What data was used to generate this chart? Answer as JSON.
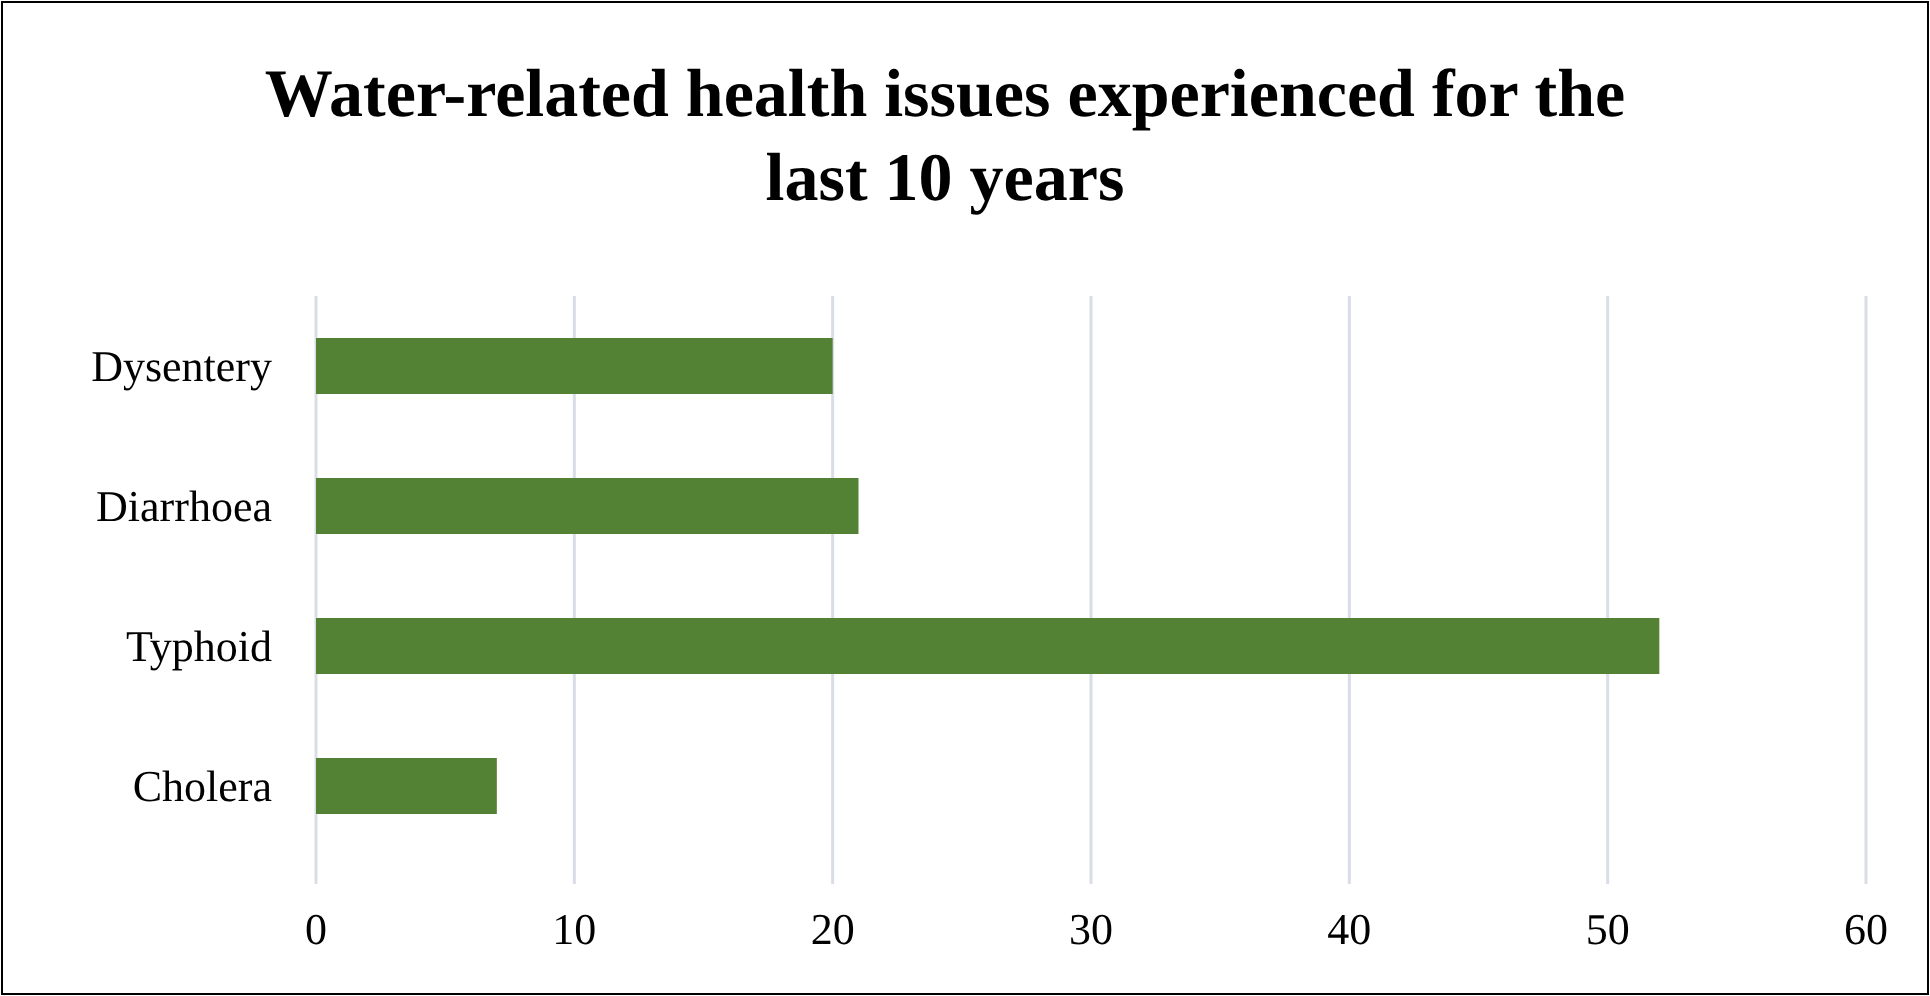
{
  "chart_data": {
    "type": "bar",
    "orientation": "horizontal",
    "title": "Water-related health issues experienced for the last 10 years",
    "categories": [
      "Dysentery",
      "Diarrhoea",
      "Typhoid",
      "Cholera"
    ],
    "values": [
      20,
      21,
      52,
      7
    ],
    "color": "#548235",
    "xlim": [
      0,
      60
    ],
    "xticks": [
      0,
      10,
      20,
      30,
      40,
      50,
      60
    ],
    "grid": "x"
  }
}
